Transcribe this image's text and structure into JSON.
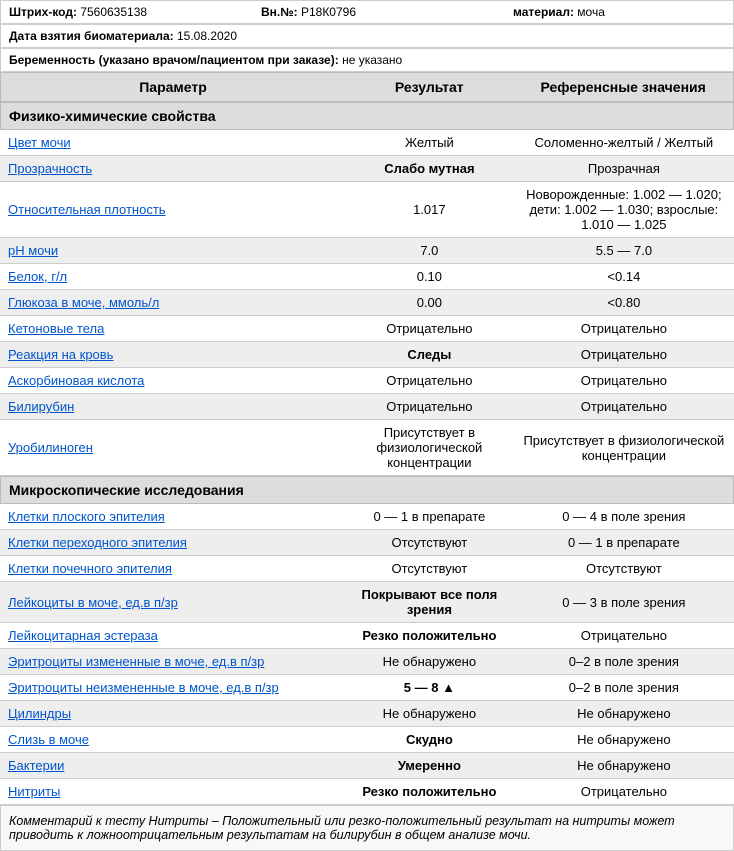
{
  "meta": {
    "barcode_label": "Штрих-код:",
    "barcode_value": "7560635138",
    "vn_label": "Вн.№:",
    "vn_value": "Р18К0796",
    "material_label": "материал:",
    "material_value": "моча",
    "sample_date_label": "Дата взятия биоматериала:",
    "sample_date_value": "15.08.2020",
    "pregnancy_label": "Беременность (указано врачом/пациентом при заказе):",
    "pregnancy_value": "не указано"
  },
  "headers": {
    "param": "Параметр",
    "result": "Результат",
    "ref": "Референсные значения"
  },
  "sections": [
    {
      "title": "Физико-химические свойства",
      "rows": [
        {
          "param": "Цвет мочи",
          "result": "Желтый",
          "ref": "Соломенно-желтый / Желтый",
          "bold": false
        },
        {
          "param": "Прозрачность",
          "result": "Слабо мутная",
          "ref": "Прозрачная",
          "bold": true
        },
        {
          "param": "Относительная плотность",
          "result": "1.017",
          "ref": "Новорожденные: 1.002 — 1.020; дети: 1.002 — 1.030; взрослые: 1.010 — 1.025",
          "bold": false
        },
        {
          "param": "pH мочи",
          "result": "7.0",
          "ref": "5.5 — 7.0",
          "bold": false
        },
        {
          "param": "Белок, г/л",
          "result": "0.10",
          "ref": "<0.14",
          "bold": false
        },
        {
          "param": "Глюкоза в моче, ммоль/л",
          "result": "0.00",
          "ref": "<0.80",
          "bold": false
        },
        {
          "param": "Кетоновые тела",
          "result": "Отрицательно",
          "ref": "Отрицательно",
          "bold": false
        },
        {
          "param": "Реакция на кровь",
          "result": "Следы",
          "ref": "Отрицательно",
          "bold": true
        },
        {
          "param": "Аскорбиновая кислота",
          "result": "Отрицательно",
          "ref": "Отрицательно",
          "bold": false
        },
        {
          "param": "Билирубин",
          "result": "Отрицательно",
          "ref": "Отрицательно",
          "bold": false
        },
        {
          "param": "Уробилиноген",
          "result": "Присутствует в физиологической концентрации",
          "ref": "Присутствует в физиологической концентрации",
          "bold": false
        }
      ]
    },
    {
      "title": "Микроскопические исследования",
      "rows": [
        {
          "param": "Клетки плоского эпителия",
          "result": "0 — 1 в препарате",
          "ref": "0 — 4 в поле зрения",
          "bold": false
        },
        {
          "param": "Клетки переходного эпителия",
          "result": "Отсутствуют",
          "ref": "0 — 1 в препарате",
          "bold": false
        },
        {
          "param": "Клетки почечного эпителия",
          "result": "Отсутствуют",
          "ref": "Отсутствуют",
          "bold": false
        },
        {
          "param": "Лейкоциты в моче, ед.в п/зр",
          "result": "Покрывают все поля зрения",
          "ref": "0 — 3 в поле зрения",
          "bold": true
        },
        {
          "param": "Лейкоцитарная эстераза",
          "result": "Резко положительно",
          "ref": "Отрицательно",
          "bold": true
        },
        {
          "param": "Эритроциты измененные в моче, ед.в п/зр",
          "result": "Не обнаружено",
          "ref": "0–2 в поле зрения",
          "bold": false
        },
        {
          "param": "Эритроциты неизмененные в моче, ед.в п/зр",
          "result": "5 — 8  ▲",
          "ref": "0–2 в поле зрения",
          "bold": true
        },
        {
          "param": "Цилиндры",
          "result": "Не обнаружено",
          "ref": "Не обнаружено",
          "bold": false
        },
        {
          "param": "Слизь в моче",
          "result": "Скудно",
          "ref": "Не обнаружено",
          "bold": true
        },
        {
          "param": "Бактерии",
          "result": "Умеренно",
          "ref": "Не обнаружено",
          "bold": true
        },
        {
          "param": "Нитриты",
          "result": "Резко положительно",
          "ref": "Отрицательно",
          "bold": true
        }
      ]
    }
  ],
  "comment": "Комментарий к тесту Нитриты – Положительный или резко-положительный результат на нитриты может приводить к ложноотрицательным результатам на билирубин в общем анализе мочи."
}
